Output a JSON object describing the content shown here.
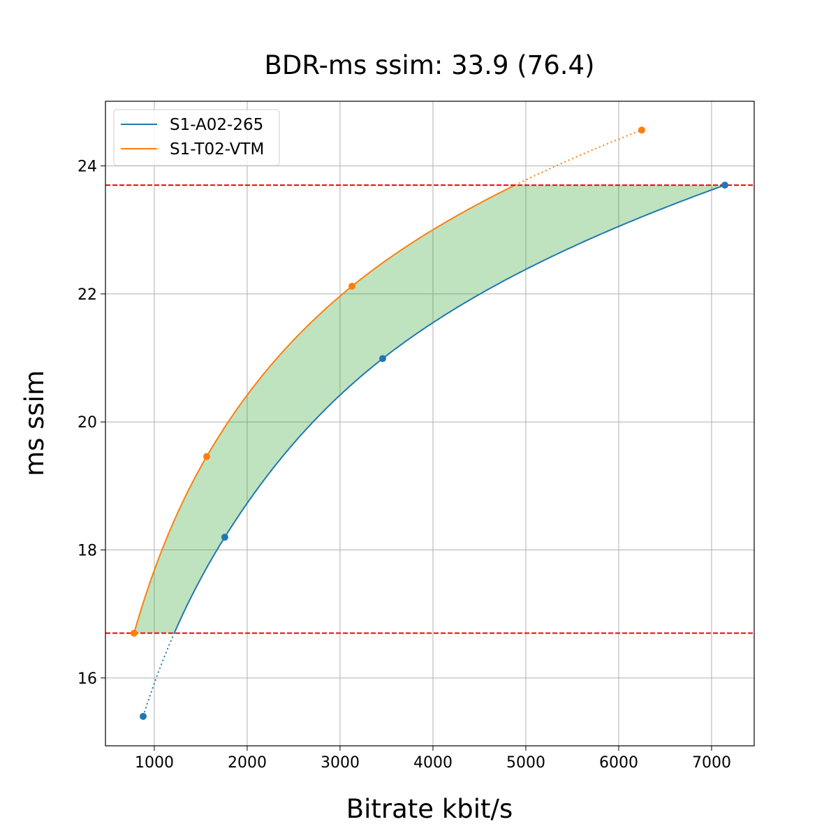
{
  "chart_data": {
    "type": "line",
    "title": "BDR-ms ssim: 33.9 (76.4)",
    "xlabel": "Bitrate kbit/s",
    "ylabel": "ms ssim",
    "xlim": [
      474,
      7459
    ],
    "ylim": [
      14.94,
      25.01
    ],
    "xticks": [
      1000,
      2000,
      3000,
      4000,
      5000,
      6000,
      7000
    ],
    "yticks": [
      16,
      18,
      20,
      22,
      24
    ],
    "grid": true,
    "legend_position": "top-left",
    "series": [
      {
        "name": "S1-A02-265",
        "color": "#1f77b4",
        "points": [
          [
            880,
            15.4
          ],
          [
            1759,
            18.2
          ],
          [
            3459,
            20.99
          ],
          [
            7143,
            23.7
          ]
        ]
      },
      {
        "name": "S1-T02-VTM",
        "color": "#ff7f0e",
        "points": [
          [
            782,
            16.7
          ],
          [
            1564,
            19.46
          ],
          [
            3128,
            22.12
          ],
          [
            6248,
            24.56
          ]
        ]
      }
    ],
    "overlap_range": [
      16.7,
      23.7
    ],
    "threshold_color": "#ff0000",
    "fill_color": "#2ca02c"
  }
}
